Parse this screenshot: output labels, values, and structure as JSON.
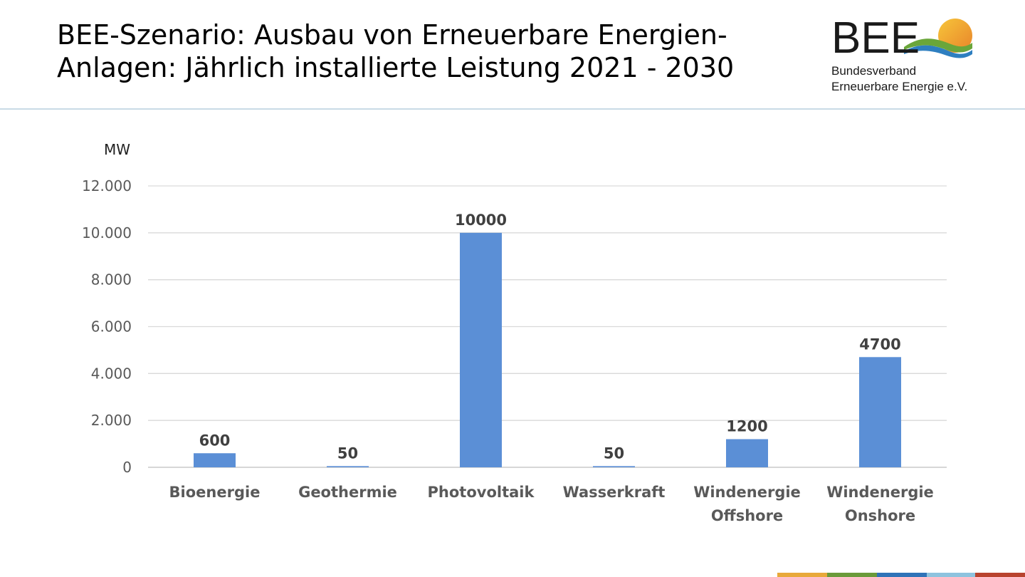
{
  "header": {
    "title_line1": "BEE-Szenario: Ausbau von Erneuerbare Energien-",
    "title_line2": "Anlagen: Jährlich installierte Leistung 2021 - 2030"
  },
  "logo": {
    "mark_text": "BEE",
    "line1": "Bundesverband",
    "line2": "Erneuerbare Energie e.V."
  },
  "chart_data": {
    "type": "bar",
    "title": "",
    "xlabel": "",
    "ylabel": "MW",
    "ylim": [
      0,
      12000
    ],
    "yticks": [
      0,
      2000,
      4000,
      6000,
      8000,
      10000,
      12000
    ],
    "ytick_labels": [
      "0",
      "2.000",
      "4.000",
      "6.000",
      "8.000",
      "10.000",
      "12.000"
    ],
    "grid": true,
    "legend": "none",
    "bar_color": "#5b8fd6",
    "categories": [
      [
        "Bioenergie"
      ],
      [
        "Geothermie"
      ],
      [
        "Photovoltaik"
      ],
      [
        "Wasserkraft"
      ],
      [
        "Windenergie",
        "Offshore"
      ],
      [
        "Windenergie",
        "Onshore"
      ]
    ],
    "values": [
      600,
      50,
      10000,
      50,
      1200,
      4700
    ],
    "data_labels": [
      "600",
      "50",
      "10000",
      "50",
      "1200",
      "4700"
    ]
  },
  "colors": {
    "footer": [
      "#e8a93b",
      "#6a9a3a",
      "#2f73b8",
      "#8ec3de",
      "#b8432e"
    ]
  }
}
